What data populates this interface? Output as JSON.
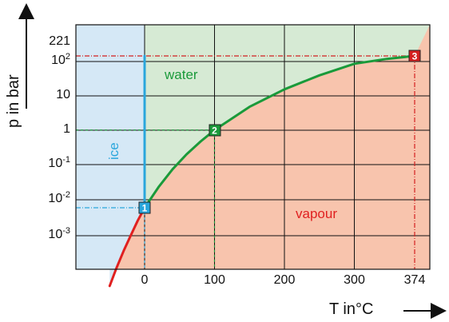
{
  "chart_data": {
    "type": "line",
    "title": "",
    "xlabel": "T in°C",
    "ylabel": "p in bar",
    "x_ticks": [
      "0",
      "100",
      "200",
      "300",
      "374"
    ],
    "y_ticks": [
      {
        "base": "221",
        "exp": ""
      },
      {
        "base": "10",
        "exp": "2"
      },
      {
        "base": "10",
        "exp": ""
      },
      {
        "base": "1",
        "exp": ""
      },
      {
        "base": "10",
        "exp": "-1"
      },
      {
        "base": "10",
        "exp": "-2"
      },
      {
        "base": "10",
        "exp": "-3"
      }
    ],
    "y_scale": "log",
    "xlim": [
      -100,
      420
    ],
    "region_labels": {
      "ice": "ice",
      "water": "water",
      "vapour": "vapour"
    },
    "points": [
      {
        "label": "1",
        "T": 0.01,
        "p": 0.006,
        "color": "#2aa6dc"
      },
      {
        "label": "2",
        "T": 100,
        "p": 1.013,
        "color": "#1a9a3a"
      },
      {
        "label": "3",
        "T": 374,
        "p": 221,
        "color": "#d42020"
      }
    ],
    "series": [
      {
        "name": "",
        "color": "#e02020",
        "x": [
          -50,
          -40,
          -30,
          -20,
          -10,
          0.01
        ],
        "y": [
          4e-05,
          0.00013,
          0.00038,
          0.001,
          0.0026,
          0.006
        ]
      },
      {
        "name": "",
        "color": "#1a9a3a",
        "x": [
          0.01,
          20,
          40,
          60,
          80,
          100,
          150,
          200,
          250,
          300,
          340,
          374
        ],
        "y": [
          0.006,
          0.023,
          0.074,
          0.2,
          0.47,
          1.013,
          4.8,
          15.5,
          39.7,
          85.9,
          146,
          221
        ]
      },
      {
        "name": "",
        "color": "#2aa6dc",
        "x": [
          0,
          0
        ],
        "y": [
          0.006,
          221
        ]
      }
    ],
    "region_colors": {
      "ice": "#d5e8f6",
      "water": "#d6ead4",
      "vapour": "#f8c4ad"
    },
    "grid": true
  }
}
